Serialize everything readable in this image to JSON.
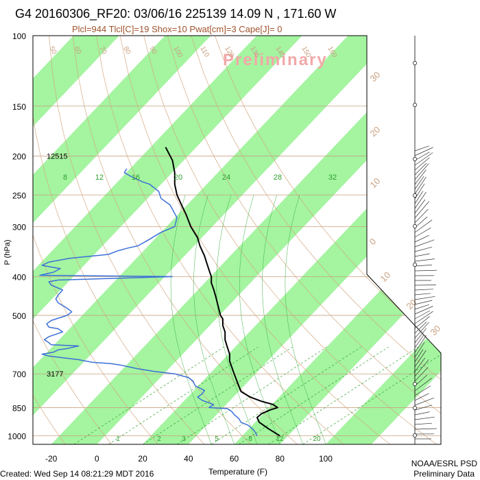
{
  "header": {
    "title": "G4 20160306_RF20: 03/06/16 225139  14.09 N , 171.60 W",
    "subtitle": "Plcl=944 Tlcl[C]=19 Shox=10 Pwat[cm]=3 Cape[J]= 0",
    "watermark": "Preliminary"
  },
  "footer": {
    "created": "Created: Wed Sep 14 08:21:29 MDT 2016",
    "org_line1": "NOAA/ESRL PSD",
    "org_line2": "Preliminary Data"
  },
  "chart_data": {
    "type": "line",
    "title": "G4 20160306_RF20: 03/06/16 225139  14.09 N , 171.60 W",
    "subtitle": "Plcl=944 Tlcl[C]=19 Shox=10 Pwat[cm]=3 Cape[J]= 0",
    "xlabel": "Temperature (F)",
    "ylabel": "P (hPa)",
    "x_ticks": [
      -20,
      0,
      20,
      40,
      60,
      80,
      100
    ],
    "y_ticks": [
      100,
      150,
      200,
      250,
      300,
      400,
      500,
      700,
      850,
      1000
    ],
    "xlim": [
      -28,
      118
    ],
    "ylim": [
      1050,
      100
    ],
    "y_scale": "log",
    "height_labels": [
      {
        "pressure": 200,
        "text": "12515"
      },
      {
        "pressure": 700,
        "text": "3177"
      }
    ],
    "mixing_ratio_labels": [
      "8",
      "12",
      "16",
      "20",
      "24",
      "28",
      "32"
    ],
    "mixing_ratio_bottom_labels": [
      "1",
      "2",
      "3",
      "5",
      "8",
      "12",
      "20"
    ],
    "isotherm_labels": [
      "30",
      "20",
      "10",
      "0",
      "10",
      "20",
      "30"
    ],
    "theta_labels": [
      "50",
      "60",
      "70",
      "80",
      "90",
      "100",
      "110",
      "120",
      "130",
      "140",
      "150",
      "160"
    ],
    "series": [
      {
        "color": "#000000",
        "points": [
          [
            80,
            1000
          ],
          [
            75,
            960
          ],
          [
            71,
            925
          ],
          [
            70,
            900
          ],
          [
            72,
            880
          ],
          [
            76,
            860
          ],
          [
            79,
            850
          ],
          [
            77,
            835
          ],
          [
            72,
            820
          ],
          [
            67,
            800
          ],
          [
            63,
            775
          ],
          [
            62,
            750
          ],
          [
            61,
            725
          ],
          [
            60,
            700
          ],
          [
            59,
            675
          ],
          [
            58,
            650
          ],
          [
            58,
            625
          ],
          [
            57,
            600
          ],
          [
            56,
            575
          ],
          [
            56,
            550
          ],
          [
            55,
            530
          ],
          [
            55,
            510
          ],
          [
            54,
            500
          ],
          [
            53,
            475
          ],
          [
            52,
            450
          ],
          [
            51,
            430
          ],
          [
            50,
            415
          ],
          [
            50,
            400
          ],
          [
            49,
            385
          ],
          [
            48,
            370
          ],
          [
            47,
            355
          ],
          [
            45,
            335
          ],
          [
            44,
            320
          ],
          [
            41,
            300
          ],
          [
            39,
            280
          ],
          [
            37,
            265
          ],
          [
            35,
            250
          ],
          [
            34,
            235
          ],
          [
            34,
            220
          ],
          [
            33,
            205
          ],
          [
            30,
            190
          ]
        ]
      },
      {
        "color": "#3a6fd8",
        "points": [
          [
            70,
            1000
          ],
          [
            69,
            975
          ],
          [
            68,
            960
          ],
          [
            66,
            940
          ],
          [
            63,
            925
          ],
          [
            62,
            905
          ],
          [
            60,
            885
          ],
          [
            59,
            870
          ],
          [
            57,
            855
          ],
          [
            49,
            850
          ],
          [
            51,
            835
          ],
          [
            46,
            815
          ],
          [
            44,
            800
          ],
          [
            46,
            785
          ],
          [
            47,
            770
          ],
          [
            43,
            750
          ],
          [
            42,
            730
          ],
          [
            40,
            715
          ],
          [
            34,
            700
          ],
          [
            25,
            690
          ],
          [
            18,
            680
          ],
          [
            10,
            665
          ],
          [
            6,
            660
          ],
          [
            -2,
            655
          ],
          [
            -8,
            645
          ],
          [
            -13,
            640
          ],
          [
            -21,
            632
          ],
          [
            -24,
            625
          ],
          [
            -19,
            618
          ],
          [
            -17,
            610
          ],
          [
            -13,
            605
          ],
          [
            -8,
            596
          ],
          [
            -20,
            592
          ],
          [
            -21,
            585
          ],
          [
            -23,
            575
          ],
          [
            -21,
            565
          ],
          [
            -15,
            550
          ],
          [
            -17,
            540
          ],
          [
            -21,
            535
          ],
          [
            -22,
            525
          ],
          [
            -20,
            515
          ],
          [
            -13,
            500
          ],
          [
            -11,
            490
          ],
          [
            -13,
            480
          ],
          [
            -17,
            465
          ],
          [
            -18,
            455
          ],
          [
            -17,
            445
          ],
          [
            -15,
            432
          ],
          [
            -20,
            420
          ],
          [
            -21,
            412
          ],
          [
            -17,
            408
          ],
          [
            33,
            400
          ],
          [
            -25,
            397
          ],
          [
            -19,
            390
          ],
          [
            -16,
            382
          ],
          [
            -24,
            375
          ],
          [
            -21,
            368
          ],
          [
            -12,
            360
          ],
          [
            5,
            352
          ],
          [
            9,
            345
          ],
          [
            13,
            340
          ],
          [
            18,
            335
          ],
          [
            22,
            325
          ],
          [
            28,
            310
          ],
          [
            34,
            300
          ],
          [
            35,
            285
          ],
          [
            32,
            265
          ],
          [
            28,
            255
          ],
          [
            27,
            245
          ],
          [
            23,
            235
          ],
          [
            20,
            232
          ],
          [
            15,
            225
          ],
          [
            12,
            220
          ],
          [
            13,
            215
          ]
        ]
      }
    ]
  }
}
